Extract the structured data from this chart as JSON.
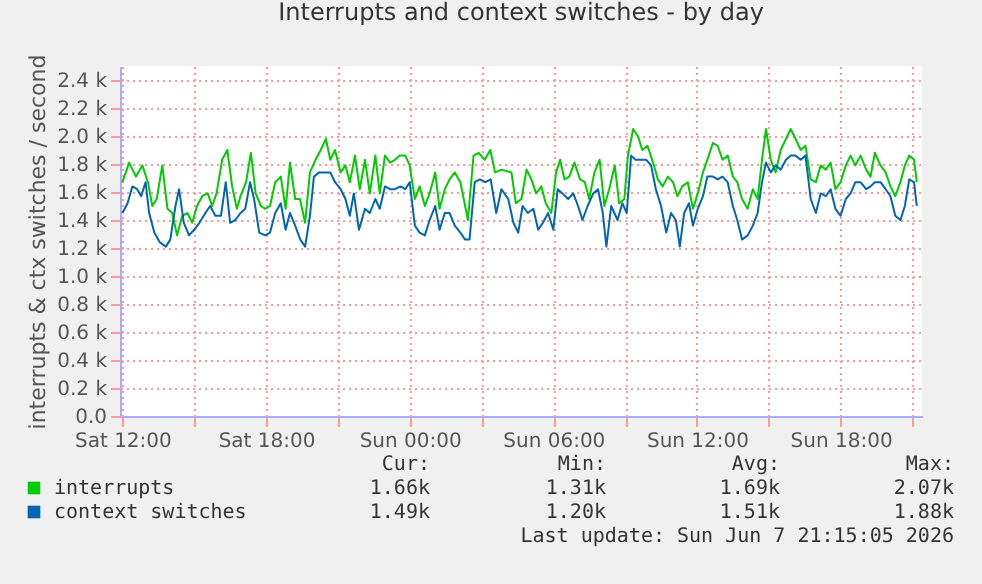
{
  "chart_data": {
    "type": "line",
    "title": "Interrupts and context switches - by day",
    "ylabel": "interrupts & ctx switches / second",
    "xlim": [
      "2026-06-06T11:54",
      "2026-06-07T21:24"
    ],
    "xticks": [
      {
        "value": "2026-06-06T12:00",
        "label": "Sat 12:00"
      },
      {
        "value": "2026-06-06T15:00",
        "label": null
      },
      {
        "value": "2026-06-06T18:00",
        "label": "Sat 18:00"
      },
      {
        "value": "2026-06-06T21:00",
        "label": null
      },
      {
        "value": "2026-06-07T00:00",
        "label": "Sun 00:00"
      },
      {
        "value": "2026-06-07T03:00",
        "label": null
      },
      {
        "value": "2026-06-07T06:00",
        "label": "Sun 06:00"
      },
      {
        "value": "2026-06-07T09:00",
        "label": null
      },
      {
        "value": "2026-06-07T12:00",
        "label": "Sun 12:00"
      },
      {
        "value": "2026-06-07T15:00",
        "label": null
      },
      {
        "value": "2026-06-07T18:00",
        "label": "Sun 18:00"
      },
      {
        "value": "2026-06-07T21:00",
        "label": null
      }
    ],
    "ylim": [
      0,
      2500
    ],
    "yticks": [
      {
        "value": 0,
        "label": "0.0"
      },
      {
        "value": 200,
        "label": "0.2 k"
      },
      {
        "value": 400,
        "label": "0.4 k"
      },
      {
        "value": 600,
        "label": "0.6 k"
      },
      {
        "value": 800,
        "label": "0.8 k"
      },
      {
        "value": 1000,
        "label": "1.0 k"
      },
      {
        "value": 1200,
        "label": "1.2 k"
      },
      {
        "value": 1400,
        "label": "1.4 k"
      },
      {
        "value": 1600,
        "label": "1.6 k"
      },
      {
        "value": 1800,
        "label": "1.8 k"
      },
      {
        "value": 2000,
        "label": "2.0 k"
      },
      {
        "value": 2200,
        "label": "2.2 k"
      },
      {
        "value": 2400,
        "label": "2.4 k"
      }
    ],
    "grid": true,
    "legend": "bottom",
    "marker": "none",
    "line_style": "solid",
    "series": [
      {
        "name": "interrupts",
        "color": "#00cc00",
        "x": [
          "2026-06-06T12:00",
          "2026-06-06T12:17",
          "2026-06-06T12:34",
          "2026-06-06T12:50",
          "2026-06-06T13:04",
          "2026-06-06T13:15",
          "2026-06-06T13:26",
          "2026-06-06T13:40",
          "2026-06-06T13:53",
          "2026-06-06T14:05",
          "2026-06-06T14:17",
          "2026-06-06T14:30",
          "2026-06-06T14:43",
          "2026-06-06T14:55",
          "2026-06-06T15:07",
          "2026-06-06T15:20",
          "2026-06-06T15:34",
          "2026-06-06T15:45",
          "2026-06-06T15:56",
          "2026-06-06T16:10",
          "2026-06-06T16:23",
          "2026-06-06T16:35",
          "2026-06-06T16:47",
          "2026-06-06T16:56",
          "2026-06-06T17:10",
          "2026-06-06T17:22",
          "2026-06-06T17:34",
          "2026-06-06T17:47",
          "2026-06-06T17:58",
          "2026-06-06T18:10",
          "2026-06-06T18:23",
          "2026-06-06T18:37",
          "2026-06-06T18:49",
          "2026-06-06T19:00",
          "2026-06-06T19:13",
          "2026-06-06T19:25",
          "2026-06-06T19:38",
          "2026-06-06T19:50",
          "2026-06-06T20:04",
          "2026-06-06T20:17",
          "2026-06-06T20:30",
          "2026-06-06T20:41",
          "2026-06-06T20:53",
          "2026-06-06T21:07",
          "2026-06-06T21:19",
          "2026-06-06T21:30",
          "2026-06-06T21:43",
          "2026-06-06T21:55",
          "2026-06-06T22:08",
          "2026-06-06T22:20",
          "2026-06-06T22:34",
          "2026-06-06T22:45",
          "2026-06-06T22:58",
          "2026-06-06T23:11",
          "2026-06-06T23:23",
          "2026-06-06T23:35",
          "2026-06-06T23:49",
          "2026-06-07T00:00",
          "2026-06-07T00:13",
          "2026-06-07T00:25",
          "2026-06-07T00:38",
          "2026-06-07T00:50",
          "2026-06-07T01:04",
          "2026-06-07T01:15",
          "2026-06-07T01:28",
          "2026-06-07T01:40",
          "2026-06-07T01:53",
          "2026-06-07T02:07",
          "2026-06-07T02:19",
          "2026-06-07T02:26",
          "2026-06-07T02:40",
          "2026-06-07T02:53",
          "2026-06-07T03:08",
          "2026-06-07T03:22",
          "2026-06-07T03:34",
          "2026-06-07T03:50",
          "2026-06-07T04:15",
          "2026-06-07T04:26",
          "2026-06-07T04:40",
          "2026-06-07T04:53",
          "2026-06-07T05:05",
          "2026-06-07T05:17",
          "2026-06-07T05:30",
          "2026-06-07T05:41",
          "2026-06-07T05:55",
          "2026-06-07T06:07",
          "2026-06-07T06:17",
          "2026-06-07T06:28",
          "2026-06-07T06:40",
          "2026-06-07T06:53",
          "2026-06-07T07:07",
          "2026-06-07T07:19",
          "2026-06-07T07:30",
          "2026-06-07T07:43",
          "2026-06-07T07:56",
          "2026-06-07T08:08",
          "2026-06-07T08:20",
          "2026-06-07T08:34",
          "2026-06-07T08:45",
          "2026-06-07T08:58",
          "2026-06-07T09:07",
          "2026-06-07T09:20",
          "2026-06-07T09:32",
          "2026-06-07T09:43",
          "2026-06-07T09:56",
          "2026-06-07T10:10",
          "2026-06-07T10:22",
          "2026-06-07T10:34",
          "2026-06-07T10:47",
          "2026-06-07T11:00",
          "2026-06-07T11:11",
          "2026-06-07T11:23",
          "2026-06-07T11:37",
          "2026-06-07T11:50",
          "2026-06-07T12:02",
          "2026-06-07T12:15",
          "2026-06-07T12:26",
          "2026-06-07T12:40",
          "2026-06-07T12:52",
          "2026-06-07T13:04",
          "2026-06-07T13:17",
          "2026-06-07T13:30",
          "2026-06-07T13:41",
          "2026-06-07T13:53",
          "2026-06-07T14:07",
          "2026-06-07T14:20",
          "2026-06-07T14:32",
          "2026-06-07T14:43",
          "2026-06-07T14:53",
          "2026-06-07T15:05",
          "2026-06-07T15:17",
          "2026-06-07T15:30",
          "2026-06-07T15:43",
          "2026-06-07T15:55",
          "2026-06-07T16:07",
          "2026-06-07T16:20",
          "2026-06-07T16:32",
          "2026-06-07T16:45",
          "2026-06-07T16:58",
          "2026-06-07T17:10",
          "2026-06-07T17:23",
          "2026-06-07T17:35",
          "2026-06-07T17:47",
          "2026-06-07T18:00",
          "2026-06-07T18:13",
          "2026-06-07T18:25",
          "2026-06-07T18:37",
          "2026-06-07T18:50",
          "2026-06-07T19:04",
          "2026-06-07T19:15",
          "2026-06-07T19:26",
          "2026-06-07T19:40",
          "2026-06-07T19:53",
          "2026-06-07T20:05",
          "2026-06-07T20:17",
          "2026-06-07T20:30",
          "2026-06-07T20:41",
          "2026-06-07T20:52",
          "2026-06-07T21:04",
          "2026-06-07T21:11"
        ],
        "values": [
          1670,
          1810,
          1710,
          1790,
          1670,
          1500,
          1550,
          1790,
          1480,
          1450,
          1290,
          1430,
          1450,
          1380,
          1500,
          1570,
          1590,
          1500,
          1590,
          1830,
          1900,
          1640,
          1480,
          1570,
          1670,
          1880,
          1590,
          1500,
          1480,
          1500,
          1670,
          1710,
          1480,
          1810,
          1550,
          1550,
          1380,
          1740,
          1830,
          1900,
          1980,
          1830,
          1900,
          1740,
          1790,
          1670,
          1860,
          1620,
          1830,
          1590,
          1860,
          1590,
          1860,
          1810,
          1830,
          1860,
          1860,
          1790,
          1550,
          1640,
          1500,
          1590,
          1740,
          1480,
          1620,
          1690,
          1740,
          1670,
          1500,
          1400,
          1860,
          1880,
          1830,
          1900,
          1740,
          1760,
          1740,
          1520,
          1550,
          1760,
          1690,
          1590,
          1640,
          1520,
          1450,
          1740,
          1830,
          1690,
          1710,
          1810,
          1690,
          1670,
          1550,
          1740,
          1830,
          1500,
          1620,
          1790,
          1520,
          1550,
          1860,
          2050,
          2000,
          1900,
          1930,
          1810,
          1690,
          1640,
          1710,
          1670,
          1570,
          1640,
          1670,
          1480,
          1590,
          1740,
          1830,
          1950,
          1930,
          1830,
          1860,
          1710,
          1670,
          1550,
          1480,
          1620,
          1550,
          1830,
          2050,
          1830,
          1740,
          1900,
          1980,
          2050,
          1980,
          1900,
          1930,
          1690,
          1670,
          1790,
          1760,
          1810,
          1620,
          1670,
          1790,
          1860,
          1790,
          1860,
          1760,
          1710,
          1880,
          1790,
          1740,
          1640,
          1570,
          1670,
          1790,
          1860,
          1830,
          1670
        ]
      },
      {
        "name": "context switches",
        "color": "#0066b3",
        "x": [
          "2026-06-06T12:00",
          "2026-06-06T12:13",
          "2026-06-06T12:25",
          "2026-06-06T12:37",
          "2026-06-06T12:47",
          "2026-06-06T12:58",
          "2026-06-06T13:07",
          "2026-06-06T13:20",
          "2026-06-06T13:34",
          "2026-06-06T13:49",
          "2026-06-06T14:00",
          "2026-06-06T14:13",
          "2026-06-06T14:22",
          "2026-06-06T14:34",
          "2026-06-06T14:47",
          "2026-06-06T15:00",
          "2026-06-06T15:13",
          "2026-06-06T15:28",
          "2026-06-06T15:40",
          "2026-06-06T15:53",
          "2026-06-06T16:07",
          "2026-06-06T16:19",
          "2026-06-06T16:30",
          "2026-06-06T16:43",
          "2026-06-06T16:56",
          "2026-06-06T17:08",
          "2026-06-06T17:20",
          "2026-06-06T17:30",
          "2026-06-06T17:43",
          "2026-06-06T17:58",
          "2026-06-06T18:10",
          "2026-06-06T18:23",
          "2026-06-06T18:37",
          "2026-06-06T18:49",
          "2026-06-06T19:00",
          "2026-06-06T19:13",
          "2026-06-06T19:26",
          "2026-06-06T19:38",
          "2026-06-06T19:50",
          "2026-06-06T20:00",
          "2026-06-06T20:13",
          "2026-06-06T20:28",
          "2026-06-06T20:41",
          "2026-06-06T20:53",
          "2026-06-06T21:07",
          "2026-06-06T21:19",
          "2026-06-06T21:30",
          "2026-06-06T21:40",
          "2026-06-06T21:53",
          "2026-06-06T22:08",
          "2026-06-06T22:20",
          "2026-06-06T22:34",
          "2026-06-06T22:45",
          "2026-06-06T22:58",
          "2026-06-06T23:11",
          "2026-06-06T23:23",
          "2026-06-06T23:37",
          "2026-06-06T23:49",
          "2026-06-07T00:00",
          "2026-06-07T00:13",
          "2026-06-07T00:25",
          "2026-06-07T00:38",
          "2026-06-07T00:50",
          "2026-06-07T01:04",
          "2026-06-07T01:15",
          "2026-06-07T01:28",
          "2026-06-07T01:40",
          "2026-06-07T01:53",
          "2026-06-07T02:07",
          "2026-06-07T02:19",
          "2026-06-07T02:30",
          "2026-06-07T02:43",
          "2026-06-07T02:56",
          "2026-06-07T03:10",
          "2026-06-07T03:23",
          "2026-06-07T03:37",
          "2026-06-07T03:50",
          "2026-06-07T04:07",
          "2026-06-07T04:20",
          "2026-06-07T04:32",
          "2026-06-07T04:43",
          "2026-06-07T04:56",
          "2026-06-07T05:10",
          "2026-06-07T05:22",
          "2026-06-07T05:34",
          "2026-06-07T05:47",
          "2026-06-07T06:00",
          "2026-06-07T06:11",
          "2026-06-07T06:23",
          "2026-06-07T06:37",
          "2026-06-07T06:50",
          "2026-06-07T07:02",
          "2026-06-07T07:13",
          "2026-06-07T07:26",
          "2026-06-07T07:40",
          "2026-06-07T07:52",
          "2026-06-07T08:04",
          "2026-06-07T08:13",
          "2026-06-07T08:25",
          "2026-06-07T08:41",
          "2026-06-07T08:53",
          "2026-06-07T09:04",
          "2026-06-07T09:15",
          "2026-06-07T09:26",
          "2026-06-07T09:40",
          "2026-06-07T09:53",
          "2026-06-07T10:05",
          "2026-06-07T10:17",
          "2026-06-07T10:30",
          "2026-06-07T10:43",
          "2026-06-07T10:55",
          "2026-06-07T11:07",
          "2026-06-07T11:17",
          "2026-06-07T11:28",
          "2026-06-07T11:40",
          "2026-06-07T11:50",
          "2026-06-07T12:02",
          "2026-06-07T12:15",
          "2026-06-07T12:26",
          "2026-06-07T12:40",
          "2026-06-07T12:52",
          "2026-06-07T13:04",
          "2026-06-07T13:17",
          "2026-06-07T13:30",
          "2026-06-07T13:41",
          "2026-06-07T13:53",
          "2026-06-07T14:07",
          "2026-06-07T14:20",
          "2026-06-07T14:32",
          "2026-06-07T14:43",
          "2026-06-07T14:53",
          "2026-06-07T15:05",
          "2026-06-07T15:17",
          "2026-06-07T15:30",
          "2026-06-07T15:43",
          "2026-06-07T15:55",
          "2026-06-07T16:07",
          "2026-06-07T16:20",
          "2026-06-07T16:32",
          "2026-06-07T16:45",
          "2026-06-07T16:58",
          "2026-06-07T17:10",
          "2026-06-07T17:23",
          "2026-06-07T17:35",
          "2026-06-07T17:47",
          "2026-06-07T18:00",
          "2026-06-07T18:13",
          "2026-06-07T18:25",
          "2026-06-07T18:37",
          "2026-06-07T18:50",
          "2026-06-07T19:04",
          "2026-06-07T19:15",
          "2026-06-07T19:26",
          "2026-06-07T19:40",
          "2026-06-07T19:53",
          "2026-06-07T20:05",
          "2026-06-07T20:17",
          "2026-06-07T20:30",
          "2026-06-07T20:41",
          "2026-06-07T20:52",
          "2026-06-07T21:04",
          "2026-06-07T21:11"
        ],
        "values": [
          1450,
          1520,
          1640,
          1620,
          1570,
          1670,
          1450,
          1310,
          1240,
          1210,
          1260,
          1500,
          1620,
          1380,
          1290,
          1330,
          1380,
          1450,
          1500,
          1430,
          1430,
          1670,
          1380,
          1400,
          1450,
          1480,
          1670,
          1550,
          1310,
          1290,
          1310,
          1450,
          1520,
          1330,
          1450,
          1360,
          1260,
          1210,
          1430,
          1710,
          1740,
          1740,
          1740,
          1670,
          1620,
          1550,
          1430,
          1590,
          1330,
          1480,
          1450,
          1550,
          1480,
          1640,
          1620,
          1620,
          1640,
          1620,
          1670,
          1360,
          1310,
          1290,
          1400,
          1500,
          1330,
          1450,
          1450,
          1360,
          1310,
          1260,
          1260,
          1670,
          1690,
          1670,
          1690,
          1450,
          1620,
          1550,
          1380,
          1310,
          1500,
          1450,
          1480,
          1330,
          1380,
          1450,
          1330,
          1620,
          1590,
          1550,
          1590,
          1500,
          1400,
          1500,
          1590,
          1620,
          1450,
          1210,
          1500,
          1400,
          1520,
          1450,
          1860,
          1830,
          1830,
          1830,
          1790,
          1620,
          1500,
          1310,
          1450,
          1400,
          1210,
          1450,
          1520,
          1360,
          1480,
          1570,
          1710,
          1710,
          1690,
          1710,
          1670,
          1500,
          1400,
          1260,
          1290,
          1360,
          1450,
          1670,
          1810,
          1740,
          1790,
          1760,
          1830,
          1860,
          1860,
          1830,
          1860,
          1550,
          1450,
          1590,
          1570,
          1620,
          1480,
          1430,
          1550,
          1590,
          1670,
          1670,
          1620,
          1640,
          1670,
          1670,
          1620,
          1570,
          1430,
          1400,
          1500,
          1690,
          1670,
          1500
        ]
      }
    ],
    "annotations": [
      "Cur:",
      "Min:",
      "Avg:",
      "Max:",
      "1.66k",
      "1.31k",
      "1.69k",
      "2.07k",
      "1.49k",
      "1.20k",
      "1.51k",
      "1.88k",
      "Last update: Sun Jun  7 21:15:05 2026"
    ]
  }
}
